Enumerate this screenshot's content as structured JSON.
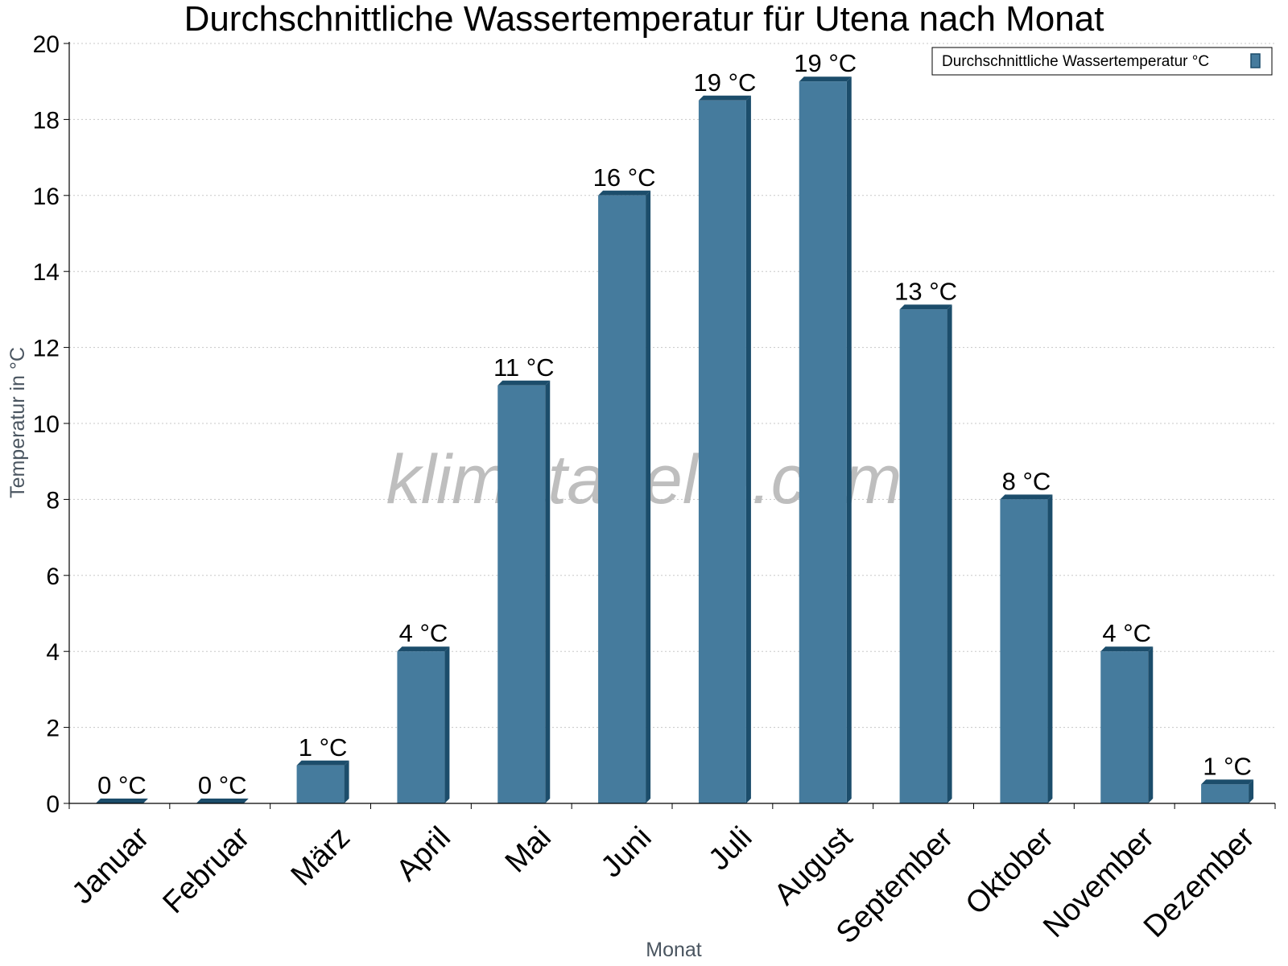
{
  "chart_data": {
    "type": "bar",
    "title": "Durchschnittliche Wassertemperatur für Utena nach Monat",
    "xlabel": "Monat",
    "ylabel": "Temperatur in °C",
    "ylim": [
      0,
      20
    ],
    "yticks": [
      0,
      2,
      4,
      6,
      8,
      10,
      12,
      14,
      16,
      18,
      20
    ],
    "grid": true,
    "legend_position": "top-right",
    "categories": [
      "Januar",
      "Februar",
      "März",
      "April",
      "Mai",
      "Juni",
      "Juli",
      "August",
      "September",
      "Oktober",
      "November",
      "Dezember"
    ],
    "series": [
      {
        "name": "Durchschnittliche Wassertemperatur °C",
        "values": [
          0,
          0,
          1,
          4,
          11,
          16,
          18.5,
          19,
          13,
          8,
          4,
          0.5
        ],
        "labels": [
          "0 °C",
          "0 °C",
          "1 °C",
          "4 °C",
          "11 °C",
          "16 °C",
          "19 °C",
          "19 °C",
          "13 °C",
          "8 °C",
          "4 °C",
          "1 °C"
        ],
        "color": "#457b9d",
        "shade_color": "#1c4d6b"
      }
    ]
  },
  "watermark": "klimatabelle.com"
}
